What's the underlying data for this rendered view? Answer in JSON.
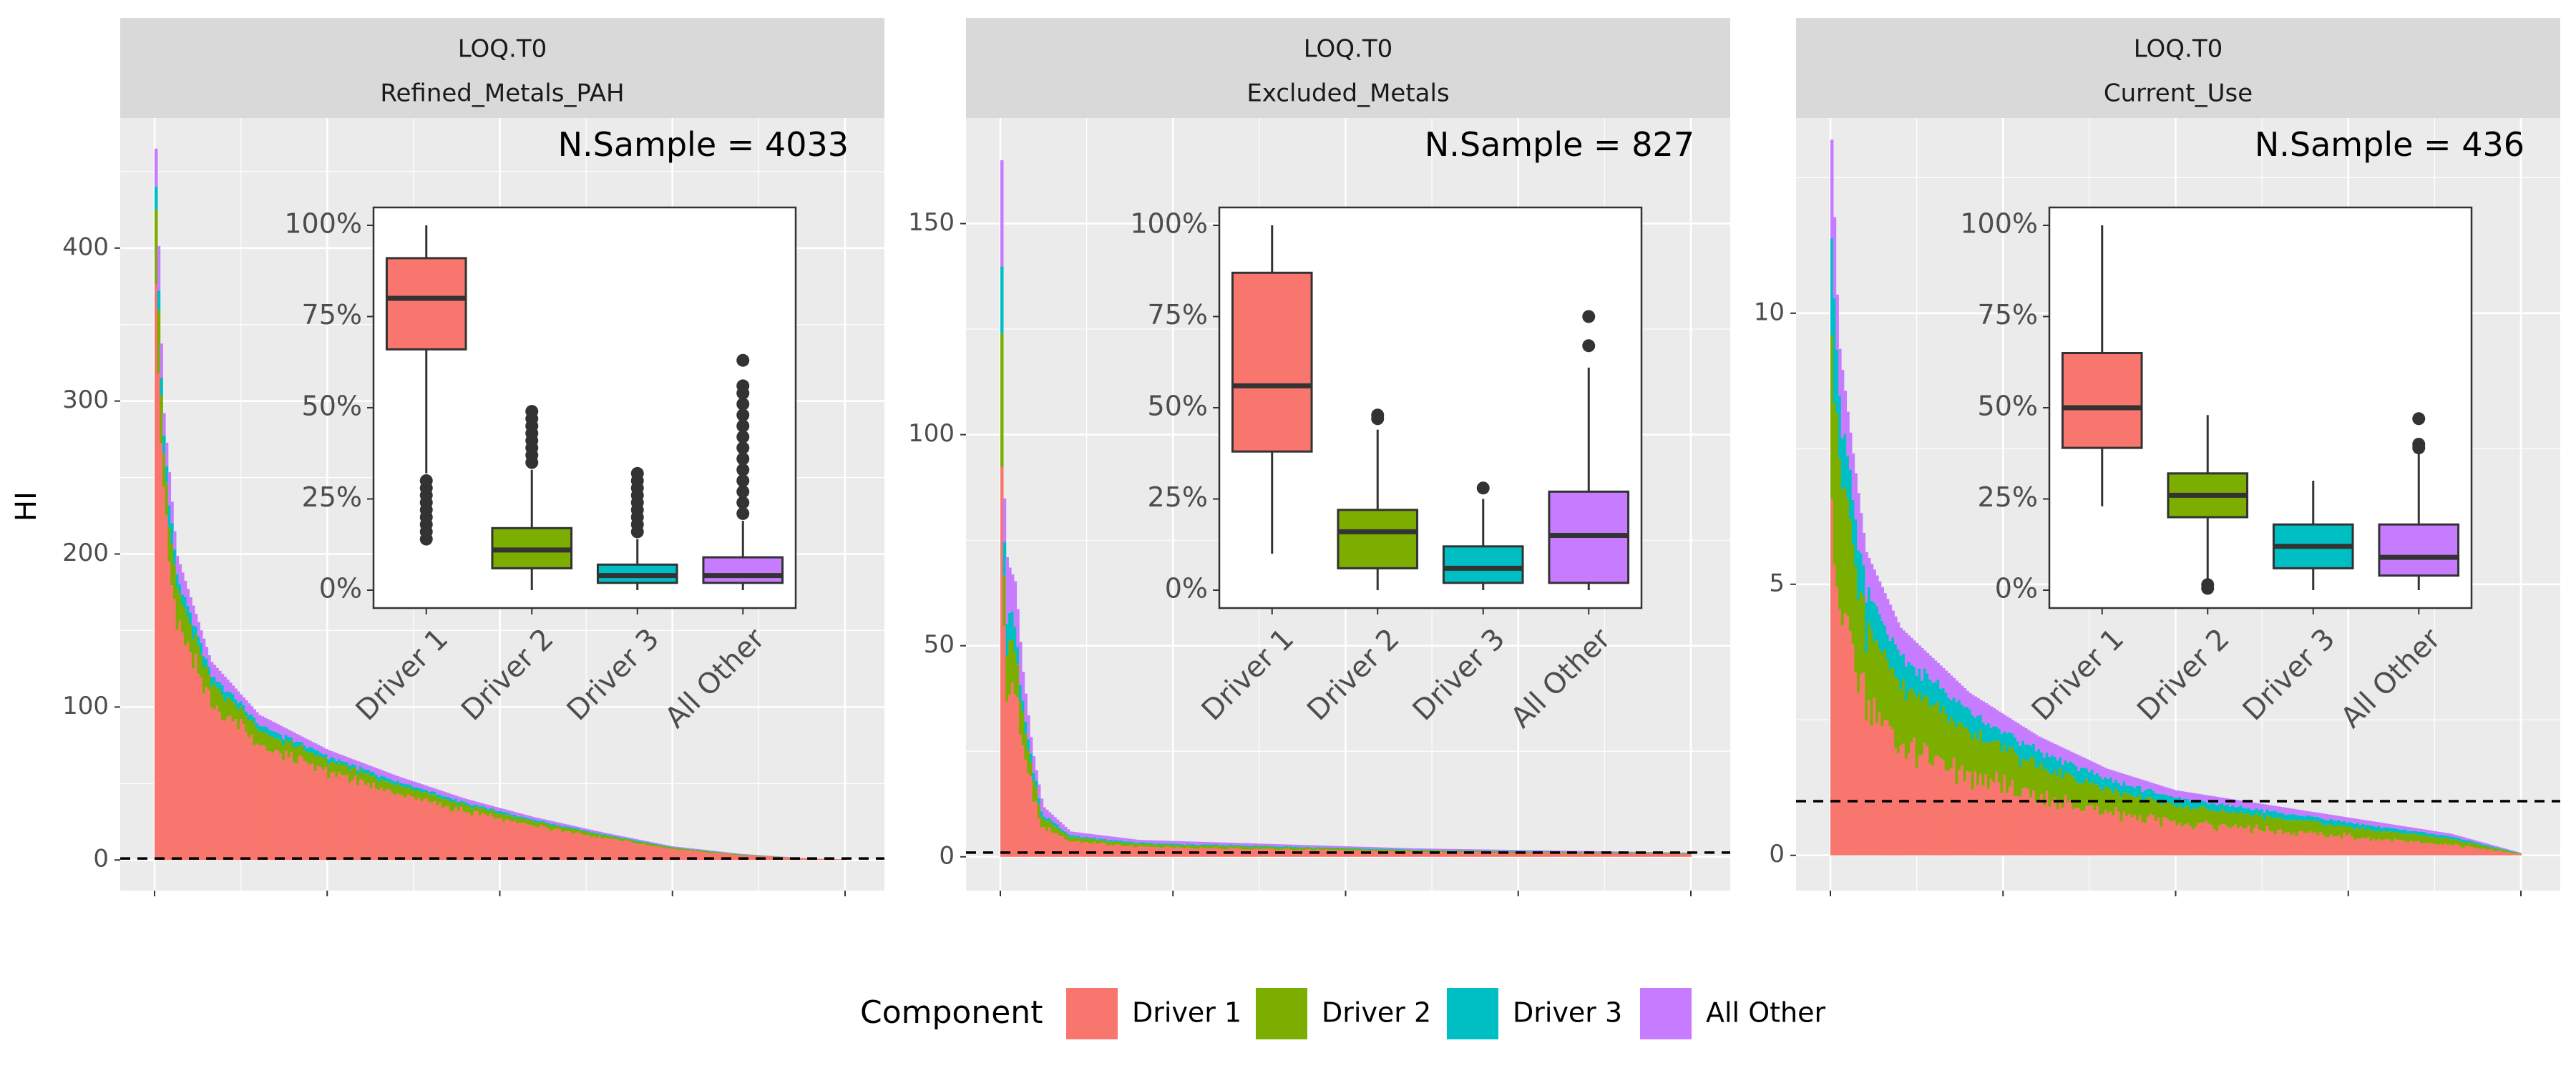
{
  "figure": {
    "ylabel": "HI",
    "legend": {
      "title": "Component",
      "position": "bottom",
      "items": [
        {
          "label": "Driver 1",
          "color": "#F8766D"
        },
        {
          "label": "Driver 2",
          "color": "#7CAE00"
        },
        {
          "label": "Driver 3",
          "color": "#00BFC4"
        },
        {
          "label": "All Other",
          "color": "#C77CFF"
        }
      ]
    }
  },
  "chart_data": [
    {
      "type": "area",
      "strip_top": "LOQ.T0",
      "strip_bottom": "Refined_Metals_PAH",
      "annotation": "N.Sample = 4033",
      "n_samples": 4033,
      "y_ticks": [
        0,
        100,
        200,
        300,
        400
      ],
      "ylim": [
        -20,
        485
      ],
      "reference_line": 1,
      "curve": {
        "peak": 465,
        "points": [
          [
            0,
            465
          ],
          [
            0.01,
            300
          ],
          [
            0.03,
            200
          ],
          [
            0.08,
            130
          ],
          [
            0.15,
            95
          ],
          [
            0.25,
            72
          ],
          [
            0.35,
            55
          ],
          [
            0.45,
            40
          ],
          [
            0.55,
            28
          ],
          [
            0.65,
            18
          ],
          [
            0.75,
            9
          ],
          [
            0.85,
            4
          ],
          [
            0.95,
            1
          ],
          [
            1.0,
            0.5
          ]
        ]
      },
      "component_shares": [
        0.8,
        0.1,
        0.04,
        0.06
      ],
      "inset": {
        "type": "box",
        "categories": [
          "Driver 1",
          "Driver 2",
          "Driver 3",
          "All Other"
        ],
        "y_ticks": [
          "0%",
          "25%",
          "50%",
          "75%",
          "100%"
        ],
        "boxes": [
          {
            "lower_whisker": 32,
            "q1": 66,
            "median": 80,
            "q3": 91,
            "upper_whisker": 100,
            "outliers": [
              14,
              16,
              18,
              20,
              22,
              24,
              26,
              28,
              30
            ]
          },
          {
            "lower_whisker": 0,
            "q1": 6,
            "median": 11,
            "q3": 17,
            "upper_whisker": 33,
            "outliers": [
              35,
              37,
              39,
              41,
              43,
              45,
              47,
              49
            ]
          },
          {
            "lower_whisker": 0,
            "q1": 2,
            "median": 4,
            "q3": 7,
            "upper_whisker": 14,
            "outliers": [
              16,
              18,
              20,
              22,
              24,
              26,
              28,
              30,
              32
            ]
          },
          {
            "lower_whisker": 0,
            "q1": 2,
            "median": 4,
            "q3": 9,
            "upper_whisker": 19,
            "outliers": [
              21,
              24,
              27,
              30,
              33,
              36,
              39,
              42,
              45,
              48,
              51,
              54,
              56,
              63
            ]
          }
        ]
      }
    },
    {
      "type": "area",
      "strip_top": "LOQ.T0",
      "strip_bottom": "Excluded_Metals",
      "annotation": "N.Sample = 827",
      "n_samples": 827,
      "y_ticks": [
        0,
        50,
        100,
        150
      ],
      "ylim": [
        -8,
        175
      ],
      "reference_line": 1,
      "curve": {
        "peak": 165,
        "points": [
          [
            0,
            165
          ],
          [
            0.003,
            88
          ],
          [
            0.008,
            70
          ],
          [
            0.02,
            65
          ],
          [
            0.03,
            45
          ],
          [
            0.045,
            25
          ],
          [
            0.06,
            12
          ],
          [
            0.1,
            6
          ],
          [
            0.2,
            4
          ],
          [
            0.4,
            3
          ],
          [
            0.6,
            2
          ],
          [
            0.8,
            1.5
          ],
          [
            1.0,
            1
          ]
        ]
      },
      "component_shares": [
        0.6,
        0.16,
        0.08,
        0.16
      ],
      "inset": {
        "type": "box",
        "categories": [
          "Driver 1",
          "Driver 2",
          "Driver 3",
          "All Other"
        ],
        "y_ticks": [
          "0%",
          "25%",
          "50%",
          "75%",
          "100%"
        ],
        "boxes": [
          {
            "lower_whisker": 10,
            "q1": 38,
            "median": 56,
            "q3": 87,
            "upper_whisker": 100,
            "outliers": []
          },
          {
            "lower_whisker": 0,
            "q1": 6,
            "median": 16,
            "q3": 22,
            "upper_whisker": 44,
            "outliers": [
              47,
              48
            ]
          },
          {
            "lower_whisker": 0,
            "q1": 2,
            "median": 6,
            "q3": 12,
            "upper_whisker": 25,
            "outliers": [
              28
            ]
          },
          {
            "lower_whisker": 0,
            "q1": 2,
            "median": 15,
            "q3": 27,
            "upper_whisker": 61,
            "outliers": [
              67,
              75
            ]
          }
        ]
      }
    },
    {
      "type": "area",
      "strip_top": "LOQ.T0",
      "strip_bottom": "Current_Use",
      "annotation": "N.Sample = 436",
      "n_samples": 436,
      "y_ticks": [
        0,
        5,
        10
      ],
      "ylim": [
        -0.65,
        13.6
      ],
      "reference_line": 1,
      "curve": {
        "peak": 13.2,
        "points": [
          [
            0,
            13.2
          ],
          [
            0.01,
            9.5
          ],
          [
            0.03,
            7.5
          ],
          [
            0.05,
            5.6
          ],
          [
            0.1,
            4.2
          ],
          [
            0.2,
            3.0
          ],
          [
            0.3,
            2.2
          ],
          [
            0.4,
            1.6
          ],
          [
            0.5,
            1.2
          ],
          [
            0.6,
            1.0
          ],
          [
            0.7,
            0.8
          ],
          [
            0.8,
            0.6
          ],
          [
            0.9,
            0.4
          ],
          [
            1.0,
            0.05
          ]
        ]
      },
      "component_shares": [
        0.5,
        0.26,
        0.12,
        0.12
      ],
      "inset": {
        "type": "box",
        "categories": [
          "Driver 1",
          "Driver 2",
          "Driver 3",
          "All Other"
        ],
        "y_ticks": [
          "0%",
          "25%",
          "50%",
          "75%",
          "100%"
        ],
        "boxes": [
          {
            "lower_whisker": 23,
            "q1": 39,
            "median": 50,
            "q3": 65,
            "upper_whisker": 100,
            "outliers": []
          },
          {
            "lower_whisker": 3,
            "q1": 20,
            "median": 26,
            "q3": 32,
            "upper_whisker": 48,
            "outliers": [
              0.5,
              1.5
            ]
          },
          {
            "lower_whisker": 0,
            "q1": 6,
            "median": 12,
            "q3": 18,
            "upper_whisker": 30,
            "outliers": []
          },
          {
            "lower_whisker": 0,
            "q1": 4,
            "median": 9,
            "q3": 18,
            "upper_whisker": 38,
            "outliers": [
              39,
              40,
              47
            ]
          }
        ]
      }
    }
  ]
}
